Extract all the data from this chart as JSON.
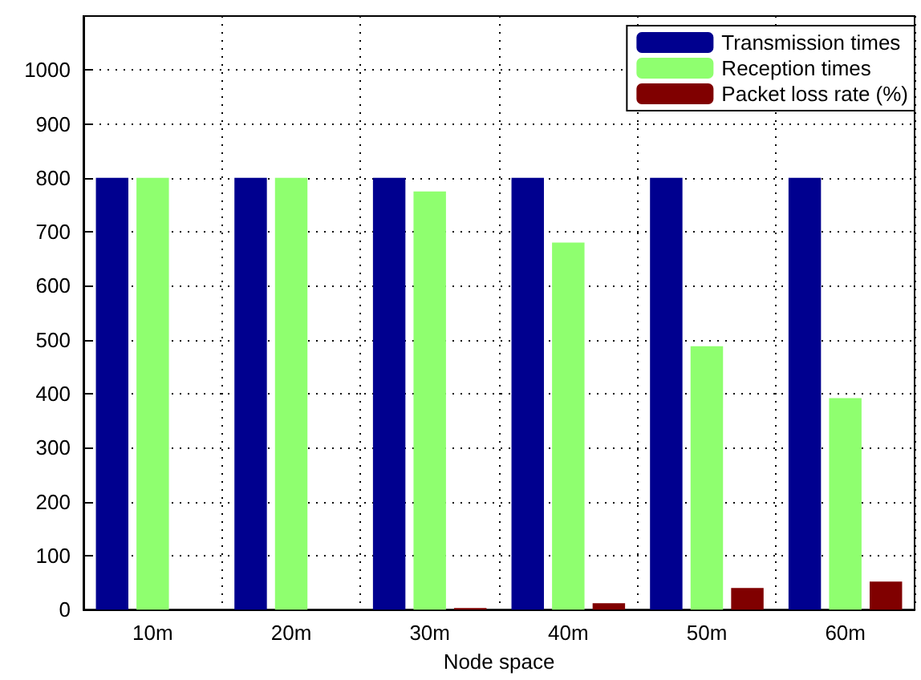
{
  "chart_data": {
    "type": "bar",
    "xlabel": "Node space",
    "categories": [
      "10m",
      "20m",
      "30m",
      "40m",
      "50m",
      "60m"
    ],
    "series": [
      {
        "name": "Transmission times",
        "color": "#00008f",
        "values": [
          800,
          800,
          800,
          800,
          800,
          800
        ]
      },
      {
        "name": "Reception times",
        "color": "#8fff6f",
        "values": [
          800,
          800,
          775,
          680,
          488,
          392
        ]
      },
      {
        "name": "Packet loss rate (%)",
        "color": "#800000",
        "values": [
          null,
          null,
          3,
          12,
          40,
          52
        ]
      }
    ],
    "ylim": [
      0,
      1100
    ],
    "yticks": [
      0,
      100,
      200,
      300,
      400,
      500,
      600,
      700,
      800,
      900,
      1000
    ],
    "grid": true,
    "legend": "top right"
  }
}
